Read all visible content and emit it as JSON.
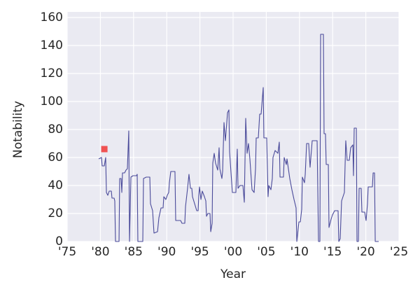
{
  "chart_data": {
    "type": "line",
    "xlabel": "Year",
    "ylabel": "Notability",
    "xlim": [
      1975,
      2025
    ],
    "ylim": [
      0,
      164
    ],
    "xticks": [
      {
        "value": 1975,
        "label": "'75"
      },
      {
        "value": 1980,
        "label": "'80"
      },
      {
        "value": 1985,
        "label": "'85"
      },
      {
        "value": 1990,
        "label": "'90"
      },
      {
        "value": 1995,
        "label": "'95"
      },
      {
        "value": 2000,
        "label": "'00"
      },
      {
        "value": 2005,
        "label": "'05"
      },
      {
        "value": 2010,
        "label": "'10"
      },
      {
        "value": 2015,
        "label": "'15"
      },
      {
        "value": 2020,
        "label": "'20"
      },
      {
        "value": 2025,
        "label": "'25"
      }
    ],
    "yticks": [
      0,
      20,
      40,
      60,
      80,
      100,
      120,
      140,
      160
    ],
    "grid": true,
    "background": "#eaeaf2",
    "series": [
      {
        "color": "#4a4a9a",
        "marker": "none",
        "x": [
          1979.75,
          1980.17,
          1980.27,
          1980.59,
          1980.8,
          1980.91,
          1981.12,
          1981.33,
          1981.65,
          1981.75,
          1982.07,
          1982.17,
          1982.28,
          1982.81,
          1982.91,
          1983.12,
          1983.23,
          1983.33,
          1983.65,
          1983.86,
          1984.07,
          1984.28,
          1984.39,
          1984.6,
          1984.92,
          1985.44,
          1985.55,
          1985.65,
          1986.39,
          1986.5,
          1986.92,
          1987.45,
          1987.55,
          1987.87,
          1988.08,
          1988.61,
          1988.82,
          1989.14,
          1989.45,
          1989.56,
          1989.87,
          1990.08,
          1990.3,
          1990.4,
          1990.61,
          1991.24,
          1991.35,
          1992.09,
          1992.3,
          1992.72,
          1992.83,
          1993.14,
          1993.35,
          1993.57,
          1993.78,
          1993.88,
          1994.2,
          1994.52,
          1994.73,
          1994.83,
          1994.94,
          1995.15,
          1995.36,
          1995.68,
          1995.89,
          1995.99,
          1996.2,
          1996.52,
          1996.63,
          1996.84,
          1996.94,
          1997.15,
          1997.36,
          1997.68,
          1997.89,
          1998.0,
          1998.31,
          1998.42,
          1998.63,
          1998.84,
          1999.16,
          1999.37,
          1999.47,
          1999.89,
          2000.42,
          2000.63,
          2000.74,
          2001.05,
          2001.48,
          2001.69,
          2001.9,
          2002.11,
          2002.32,
          2002.53,
          2002.85,
          2003.17,
          2003.38,
          2003.48,
          2003.8,
          2004.01,
          2004.22,
          2004.54,
          2004.64,
          2005.06,
          2005.27,
          2005.38,
          2005.7,
          2005.91,
          2006.01,
          2006.33,
          2006.75,
          2006.96,
          2007.07,
          2007.59,
          2007.7,
          2008.02,
          2008.12,
          2008.54,
          2008.86,
          2009.18,
          2009.49,
          2009.6,
          2009.92,
          2010.13,
          2010.34,
          2010.44,
          2010.76,
          2010.87,
          2011.08,
          2011.39,
          2011.6,
          2011.92,
          2012.66,
          2012.87,
          2013.08,
          2013.19,
          2013.61,
          2013.71,
          2013.92,
          2014.03,
          2014.35,
          2014.45,
          2014.56,
          2014.77,
          2014.98,
          2015.3,
          2015.82,
          2015.93,
          2016.14,
          2016.35,
          2016.77,
          2016.88,
          2016.98,
          2017.19,
          2017.51,
          2017.72,
          2018.04,
          2018.14,
          2018.25,
          2018.57,
          2018.67,
          2018.88,
          2018.99,
          2019.3,
          2019.41,
          2019.83,
          2020.04,
          2020.25,
          2020.36,
          2020.99,
          2021.1,
          2021.31,
          2021.42,
          2021.94
        ],
        "values": [
          59,
          60,
          54,
          54,
          60,
          35,
          33,
          36,
          36,
          31,
          31,
          29,
          0,
          0,
          45,
          45,
          35,
          49,
          49,
          51,
          52,
          79,
          0,
          46,
          47,
          47,
          48,
          0,
          0,
          45,
          46,
          46,
          27,
          22,
          6,
          7,
          17,
          24,
          24,
          32,
          30,
          33,
          35,
          42,
          50,
          50,
          15,
          15,
          13,
          13,
          25,
          38,
          48,
          38,
          38,
          32,
          27,
          22,
          22,
          33,
          39,
          30,
          36,
          32,
          29,
          18,
          20,
          20,
          7,
          13,
          56,
          63,
          56,
          51,
          67,
          52,
          45,
          50,
          85,
          72,
          92,
          94,
          64,
          35,
          35,
          66,
          38,
          40,
          40,
          28,
          88,
          63,
          70,
          59,
          37,
          35,
          52,
          74,
          74,
          91,
          91,
          110,
          74,
          74,
          32,
          40,
          37,
          45,
          60,
          65,
          63,
          71,
          46,
          46,
          60,
          55,
          59,
          45,
          37,
          30,
          24,
          0,
          14,
          14,
          23,
          46,
          42,
          48,
          70,
          70,
          53,
          72,
          72,
          0,
          0,
          148,
          148,
          77,
          77,
          55,
          55,
          10,
          12,
          16,
          19,
          22,
          22,
          0,
          2,
          29,
          35,
          55,
          72,
          58,
          58,
          67,
          69,
          47,
          81,
          81,
          0,
          0,
          38,
          38,
          21,
          21,
          15,
          27,
          39,
          39,
          49,
          49,
          0,
          0
        ]
      },
      {
        "color": "#f05252",
        "marker": "square",
        "x": [
          1980.6
        ],
        "values": [
          66
        ]
      }
    ]
  }
}
